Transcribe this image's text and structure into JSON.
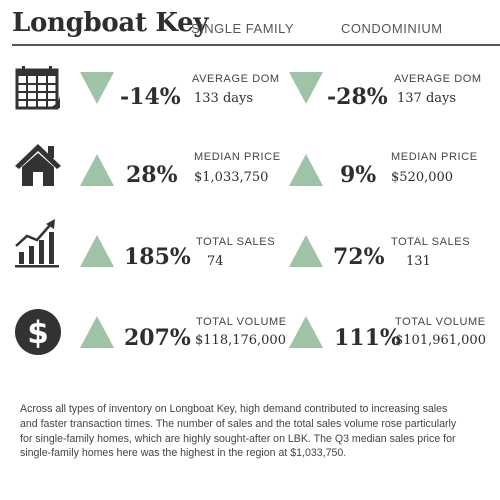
{
  "header": {
    "title": "Longboat Key",
    "col_single_family": "SINGLE FAMILY",
    "col_condominium": "CONDOMINIUM"
  },
  "colors": {
    "triangle_green": "#9fc3a6",
    "icon_dark": "#333333"
  },
  "rows": [
    {
      "icon": "calendar-icon",
      "single_family": {
        "direction": "down",
        "percent": "-14%",
        "label": "AVERAGE DOM",
        "value": "133 days"
      },
      "condominium": {
        "direction": "down",
        "percent": "-28%",
        "label": "AVERAGE DOM",
        "value": "137 days"
      }
    },
    {
      "icon": "house-icon",
      "single_family": {
        "direction": "up",
        "percent": "28%",
        "label": "MEDIAN PRICE",
        "value": "$1,033,750"
      },
      "condominium": {
        "direction": "up",
        "percent": "9%",
        "label": "MEDIAN PRICE",
        "value": "$520,000"
      }
    },
    {
      "icon": "bar-chart-growth-icon",
      "single_family": {
        "direction": "up",
        "percent": "185%",
        "label": "TOTAL SALES",
        "value": "74"
      },
      "condominium": {
        "direction": "up",
        "percent": "72%",
        "label": "TOTAL SALES",
        "value": "131"
      }
    },
    {
      "icon": "dollar-coin-icon",
      "single_family": {
        "direction": "up",
        "percent": "207%",
        "label": "TOTAL VOLUME",
        "value": "$118,176,000"
      },
      "condominium": {
        "direction": "up",
        "percent": "111%",
        "label": "TOTAL VOLUME",
        "value": "$101,961,000"
      }
    }
  ],
  "summary": "Across all types of inventory on Longboat Key, high demand contributed to increasing sales and faster transaction times. The number of sales and the total sales volume rose particularly for single-family homes, which are highly sought-after on LBK. The Q3 median sales price for single-family homes here was the highest in the region at $1,033,750."
}
